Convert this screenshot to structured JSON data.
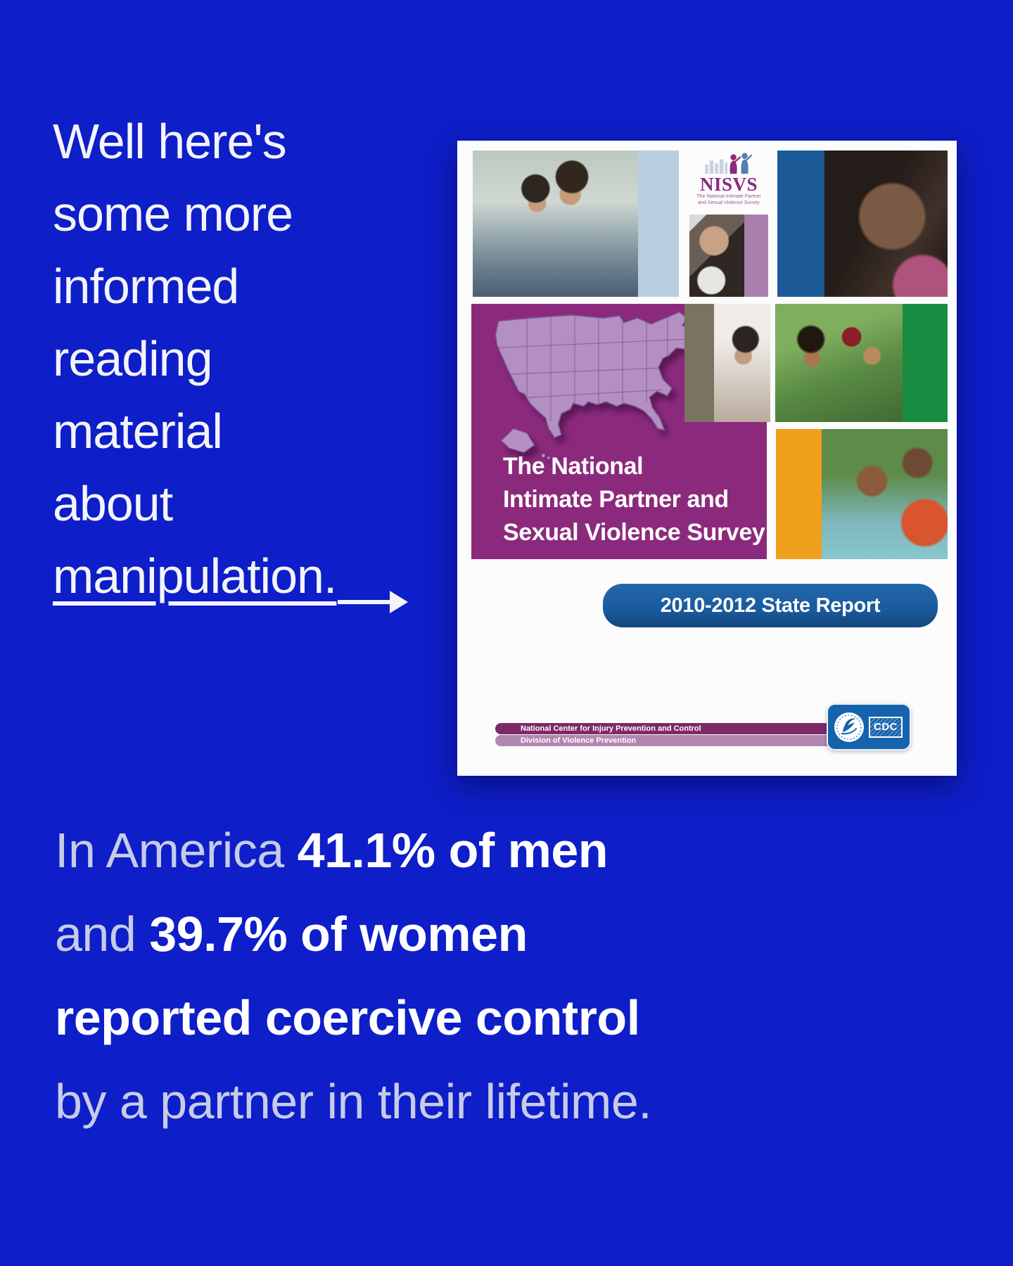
{
  "page": {
    "background_color": "#0e1ec8"
  },
  "headline": {
    "lines": [
      "Well here's",
      "some more",
      "informed",
      "reading",
      "material",
      "about"
    ],
    "underlined_word": "manipulation.",
    "text_color": "#f3f4fa"
  },
  "report_cover": {
    "logo": {
      "wordmark": "NISVS",
      "tagline_line1": "The National Intimate Partner",
      "tagline_line2": "and Sexual Violence Survey"
    },
    "title_lines": [
      "The National",
      "Intimate Partner and",
      "Sexual Violence Survey"
    ],
    "banner_label": "2010-2012 State Report",
    "footer_line1": "National Center for Injury Prevention and Control",
    "footer_line2": "Division of Violence Prevention",
    "cdc_label": "CDC",
    "colors": {
      "title_block": "#8b2a7d",
      "banner": "#1a5a9d",
      "accent_light_blue": "#b9cfdf",
      "accent_dark_blue": "#1c5b97",
      "accent_green": "#188c41",
      "accent_orange": "#f0a01d",
      "accent_taupe": "#7a7361",
      "accent_mauve": "#a87fad",
      "footer_dark": "#7e2967",
      "footer_light": "#b287ae",
      "cdc_badge": "#1563ad",
      "map_fill": "#b38fc2"
    }
  },
  "stats": {
    "muted_color": "#c6cce8",
    "strong_color": "#ffffff",
    "lines": [
      [
        {
          "text": "In America ",
          "style": "muted"
        },
        {
          "text": "41.1% of men",
          "style": "strong"
        }
      ],
      [
        {
          "text": "and ",
          "style": "muted"
        },
        {
          "text": "39.7% of women",
          "style": "strong"
        }
      ],
      [
        {
          "text": "reported coercive control",
          "style": "strong"
        }
      ],
      [
        {
          "text": "by a partner in their lifetime.",
          "style": "muted"
        }
      ]
    ]
  }
}
